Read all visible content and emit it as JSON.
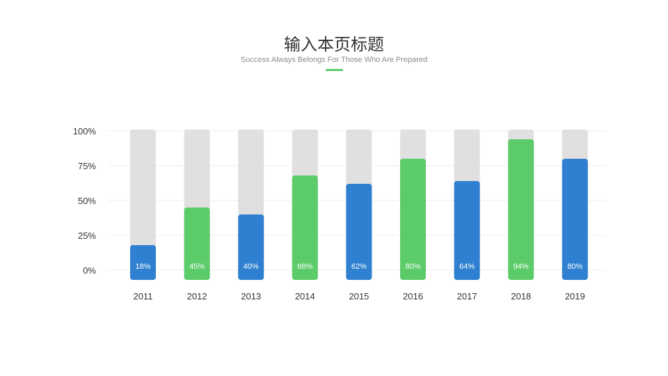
{
  "header": {
    "title": "输入本页标题",
    "subtitle": "Success Always Belongs For Those Who Are Prepared"
  },
  "colors": {
    "blue": "#2f80d0",
    "green": "#5ccb6a",
    "track": "#e0e0e0",
    "grid": "#ececec"
  },
  "chart_data": {
    "type": "bar",
    "title": "",
    "xlabel": "",
    "ylabel": "",
    "ylim": [
      0,
      100
    ],
    "y_ticks": [
      "0%",
      "25%",
      "50%",
      "75%",
      "100%"
    ],
    "grid": true,
    "categories": [
      "2011",
      "2012",
      "2013",
      "2014",
      "2015",
      "2016",
      "2017",
      "2018",
      "2019"
    ],
    "values": [
      18,
      45,
      40,
      68,
      62,
      80,
      64,
      94,
      80
    ],
    "value_labels": [
      "18%",
      "45%",
      "40%",
      "68%",
      "62%",
      "80%",
      "64%",
      "94%",
      "80%"
    ],
    "bar_colors": [
      "blue",
      "green",
      "blue",
      "green",
      "blue",
      "green",
      "blue",
      "green",
      "blue"
    ]
  }
}
